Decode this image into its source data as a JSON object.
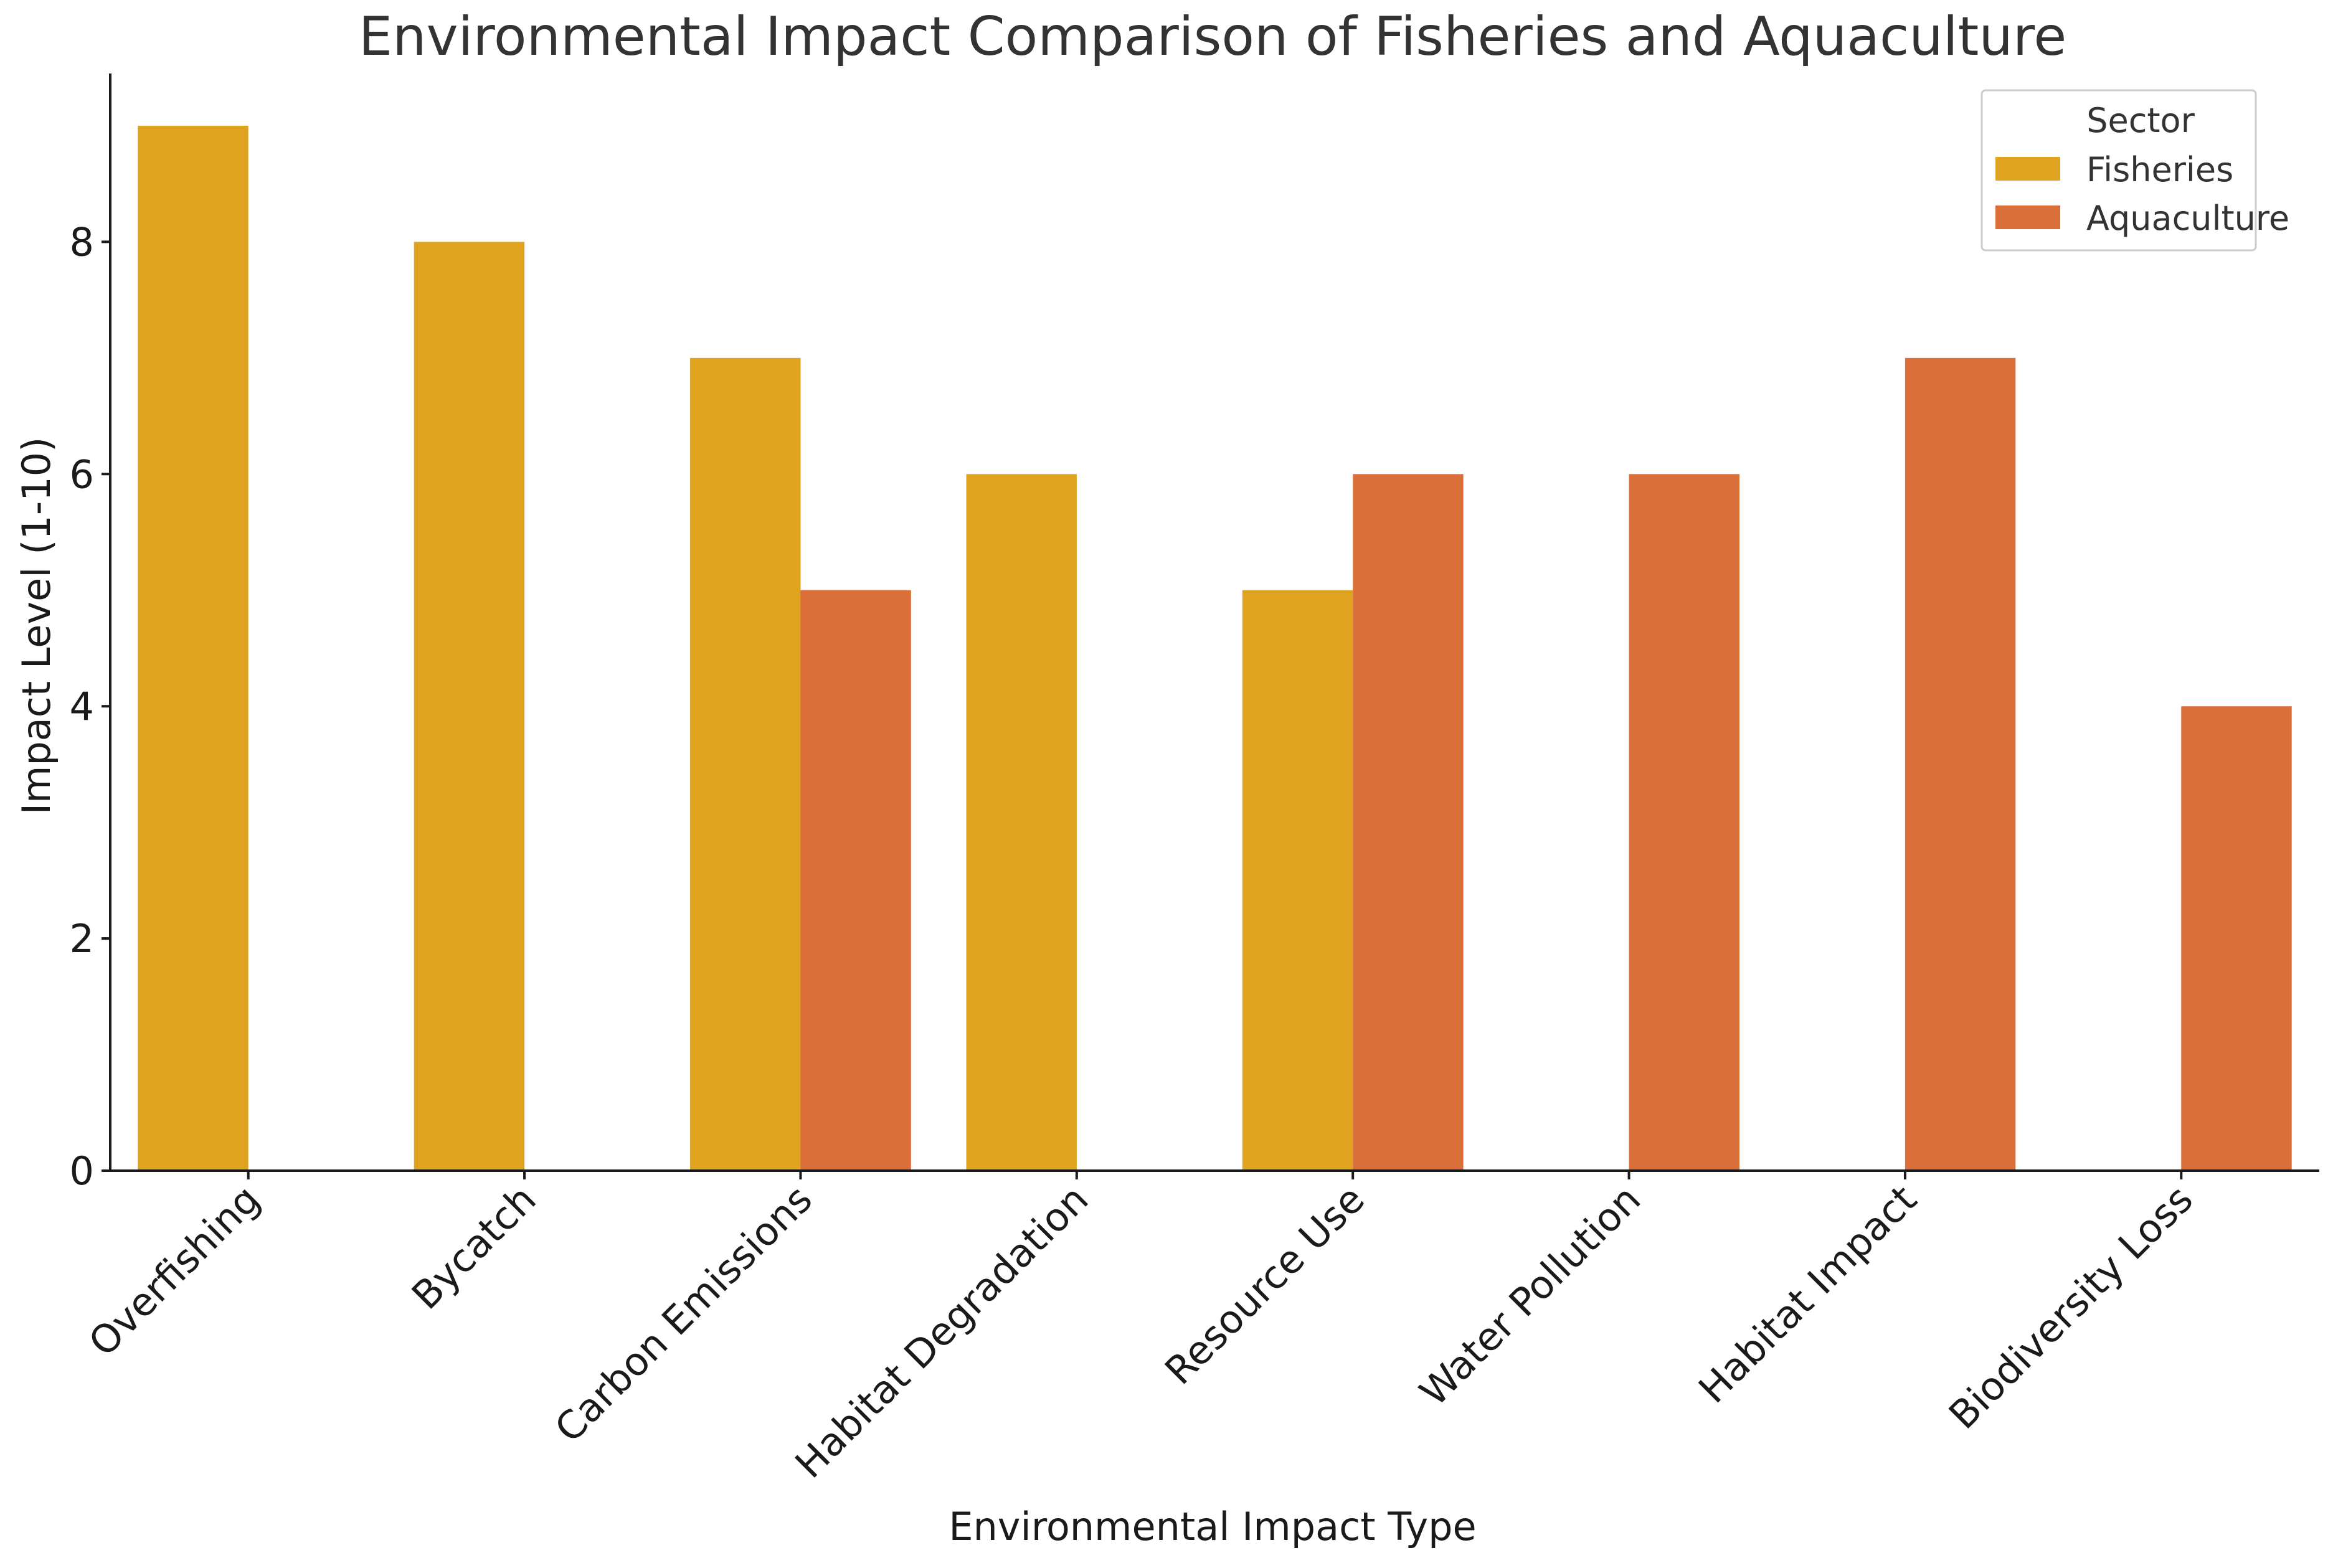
{
  "chart_data": {
    "type": "bar",
    "title": "Environmental Impact Comparison of Fisheries and Aquaculture",
    "xlabel": "Environmental Impact Type",
    "ylabel": "Impact Level (1-10)",
    "ylim": [
      0,
      9.45
    ],
    "yticks": [
      0,
      2,
      4,
      6,
      8
    ],
    "grid": false,
    "categories": [
      "Overfishing",
      "Bycatch",
      "Carbon Emissions",
      "Habitat Degradation",
      "Resource Use",
      "Water Pollution",
      "Habitat Impact",
      "Biodiversity Loss"
    ],
    "series": [
      {
        "name": "Fisheries",
        "color": "#E0A320",
        "values": [
          9,
          8,
          7,
          6,
          5,
          null,
          null,
          null
        ]
      },
      {
        "name": "Aquaculture",
        "color": "#DA6F3A",
        "values": [
          null,
          null,
          5,
          null,
          6,
          6,
          7,
          4
        ]
      }
    ],
    "legend": {
      "title": "Sector",
      "position": "top-right"
    }
  }
}
